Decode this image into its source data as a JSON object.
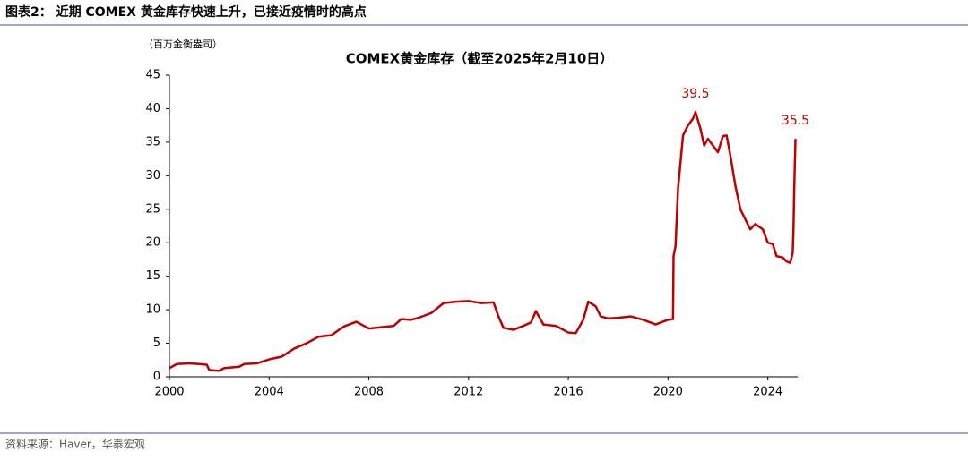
{
  "header": {
    "title": "图表2：  近期 COMEX 黄金库存快速上升，已接近疫情时的高点"
  },
  "footer": {
    "source": "资料来源：Haver，华泰宏观"
  },
  "chart_data": {
    "type": "line",
    "title": "COMEX黄金库存（截至2025年2月10日）",
    "y_label": "（百万金衡盎司）",
    "xlim": [
      2000,
      2025.2
    ],
    "xticks": [
      2000,
      2004,
      2008,
      2012,
      2016,
      2020,
      2024
    ],
    "ylim": [
      0,
      45
    ],
    "yticks": [
      0,
      5,
      10,
      15,
      20,
      25,
      30,
      35,
      40,
      45
    ],
    "grid": false,
    "series": [
      {
        "name": "COMEX黄金库存",
        "color": "#c00000",
        "x": [
          2000.0,
          2000.3,
          2000.8,
          2001.2,
          2001.5,
          2001.6,
          2002.0,
          2002.2,
          2002.5,
          2002.8,
          2003.0,
          2003.5,
          2004.0,
          2004.5,
          2005.0,
          2005.5,
          2006.0,
          2006.5,
          2007.0,
          2007.5,
          2007.8,
          2008.0,
          2008.5,
          2009.0,
          2009.3,
          2009.7,
          2010.0,
          2010.5,
          2011.0,
          2011.5,
          2012.0,
          2012.5,
          2013.0,
          2013.2,
          2013.4,
          2013.8,
          2014.2,
          2014.5,
          2014.7,
          2015.0,
          2015.5,
          2016.0,
          2016.3,
          2016.6,
          2016.8,
          2017.1,
          2017.3,
          2017.6,
          2018.0,
          2018.5,
          2019.0,
          2019.5,
          2020.0,
          2020.2,
          2020.22,
          2020.3,
          2020.4,
          2020.5,
          2020.6,
          2020.8,
          2021.0,
          2021.1,
          2021.3,
          2021.45,
          2021.6,
          2021.8,
          2022.0,
          2022.2,
          2022.35,
          2022.5,
          2022.7,
          2022.9,
          2023.1,
          2023.3,
          2023.5,
          2023.8,
          2024.0,
          2024.2,
          2024.35,
          2024.6,
          2024.75,
          2024.9,
          2025.0,
          2025.03,
          2025.06,
          2025.11
        ],
        "values": [
          1.3,
          1.9,
          2.0,
          1.9,
          1.8,
          1.0,
          0.9,
          1.3,
          1.4,
          1.5,
          1.9,
          2.0,
          2.6,
          3.0,
          4.2,
          5.0,
          6.0,
          6.2,
          7.5,
          8.2,
          7.6,
          7.2,
          7.4,
          7.6,
          8.6,
          8.5,
          8.8,
          9.5,
          11.0,
          11.2,
          11.3,
          11.0,
          11.1,
          9.0,
          7.3,
          7.0,
          7.6,
          8.1,
          9.8,
          7.8,
          7.6,
          6.6,
          6.5,
          8.5,
          11.2,
          10.5,
          9.0,
          8.7,
          8.8,
          9.0,
          8.5,
          7.8,
          8.5,
          8.6,
          18,
          19.5,
          28,
          32,
          36,
          37.5,
          38.5,
          39.5,
          37,
          34.5,
          35.5,
          34.5,
          33.5,
          35.9,
          36,
          33,
          28.5,
          25,
          23.5,
          22.0,
          22.8,
          22.0,
          20.0,
          19.8,
          18.0,
          17.8,
          17.2,
          17.0,
          18.5,
          22,
          28,
          35.5
        ]
      }
    ],
    "annotations": [
      {
        "label": "39.5",
        "value": 39.5,
        "x": 2021.1
      },
      {
        "label": "35.5",
        "value": 35.5,
        "x": 2025.11
      }
    ]
  }
}
